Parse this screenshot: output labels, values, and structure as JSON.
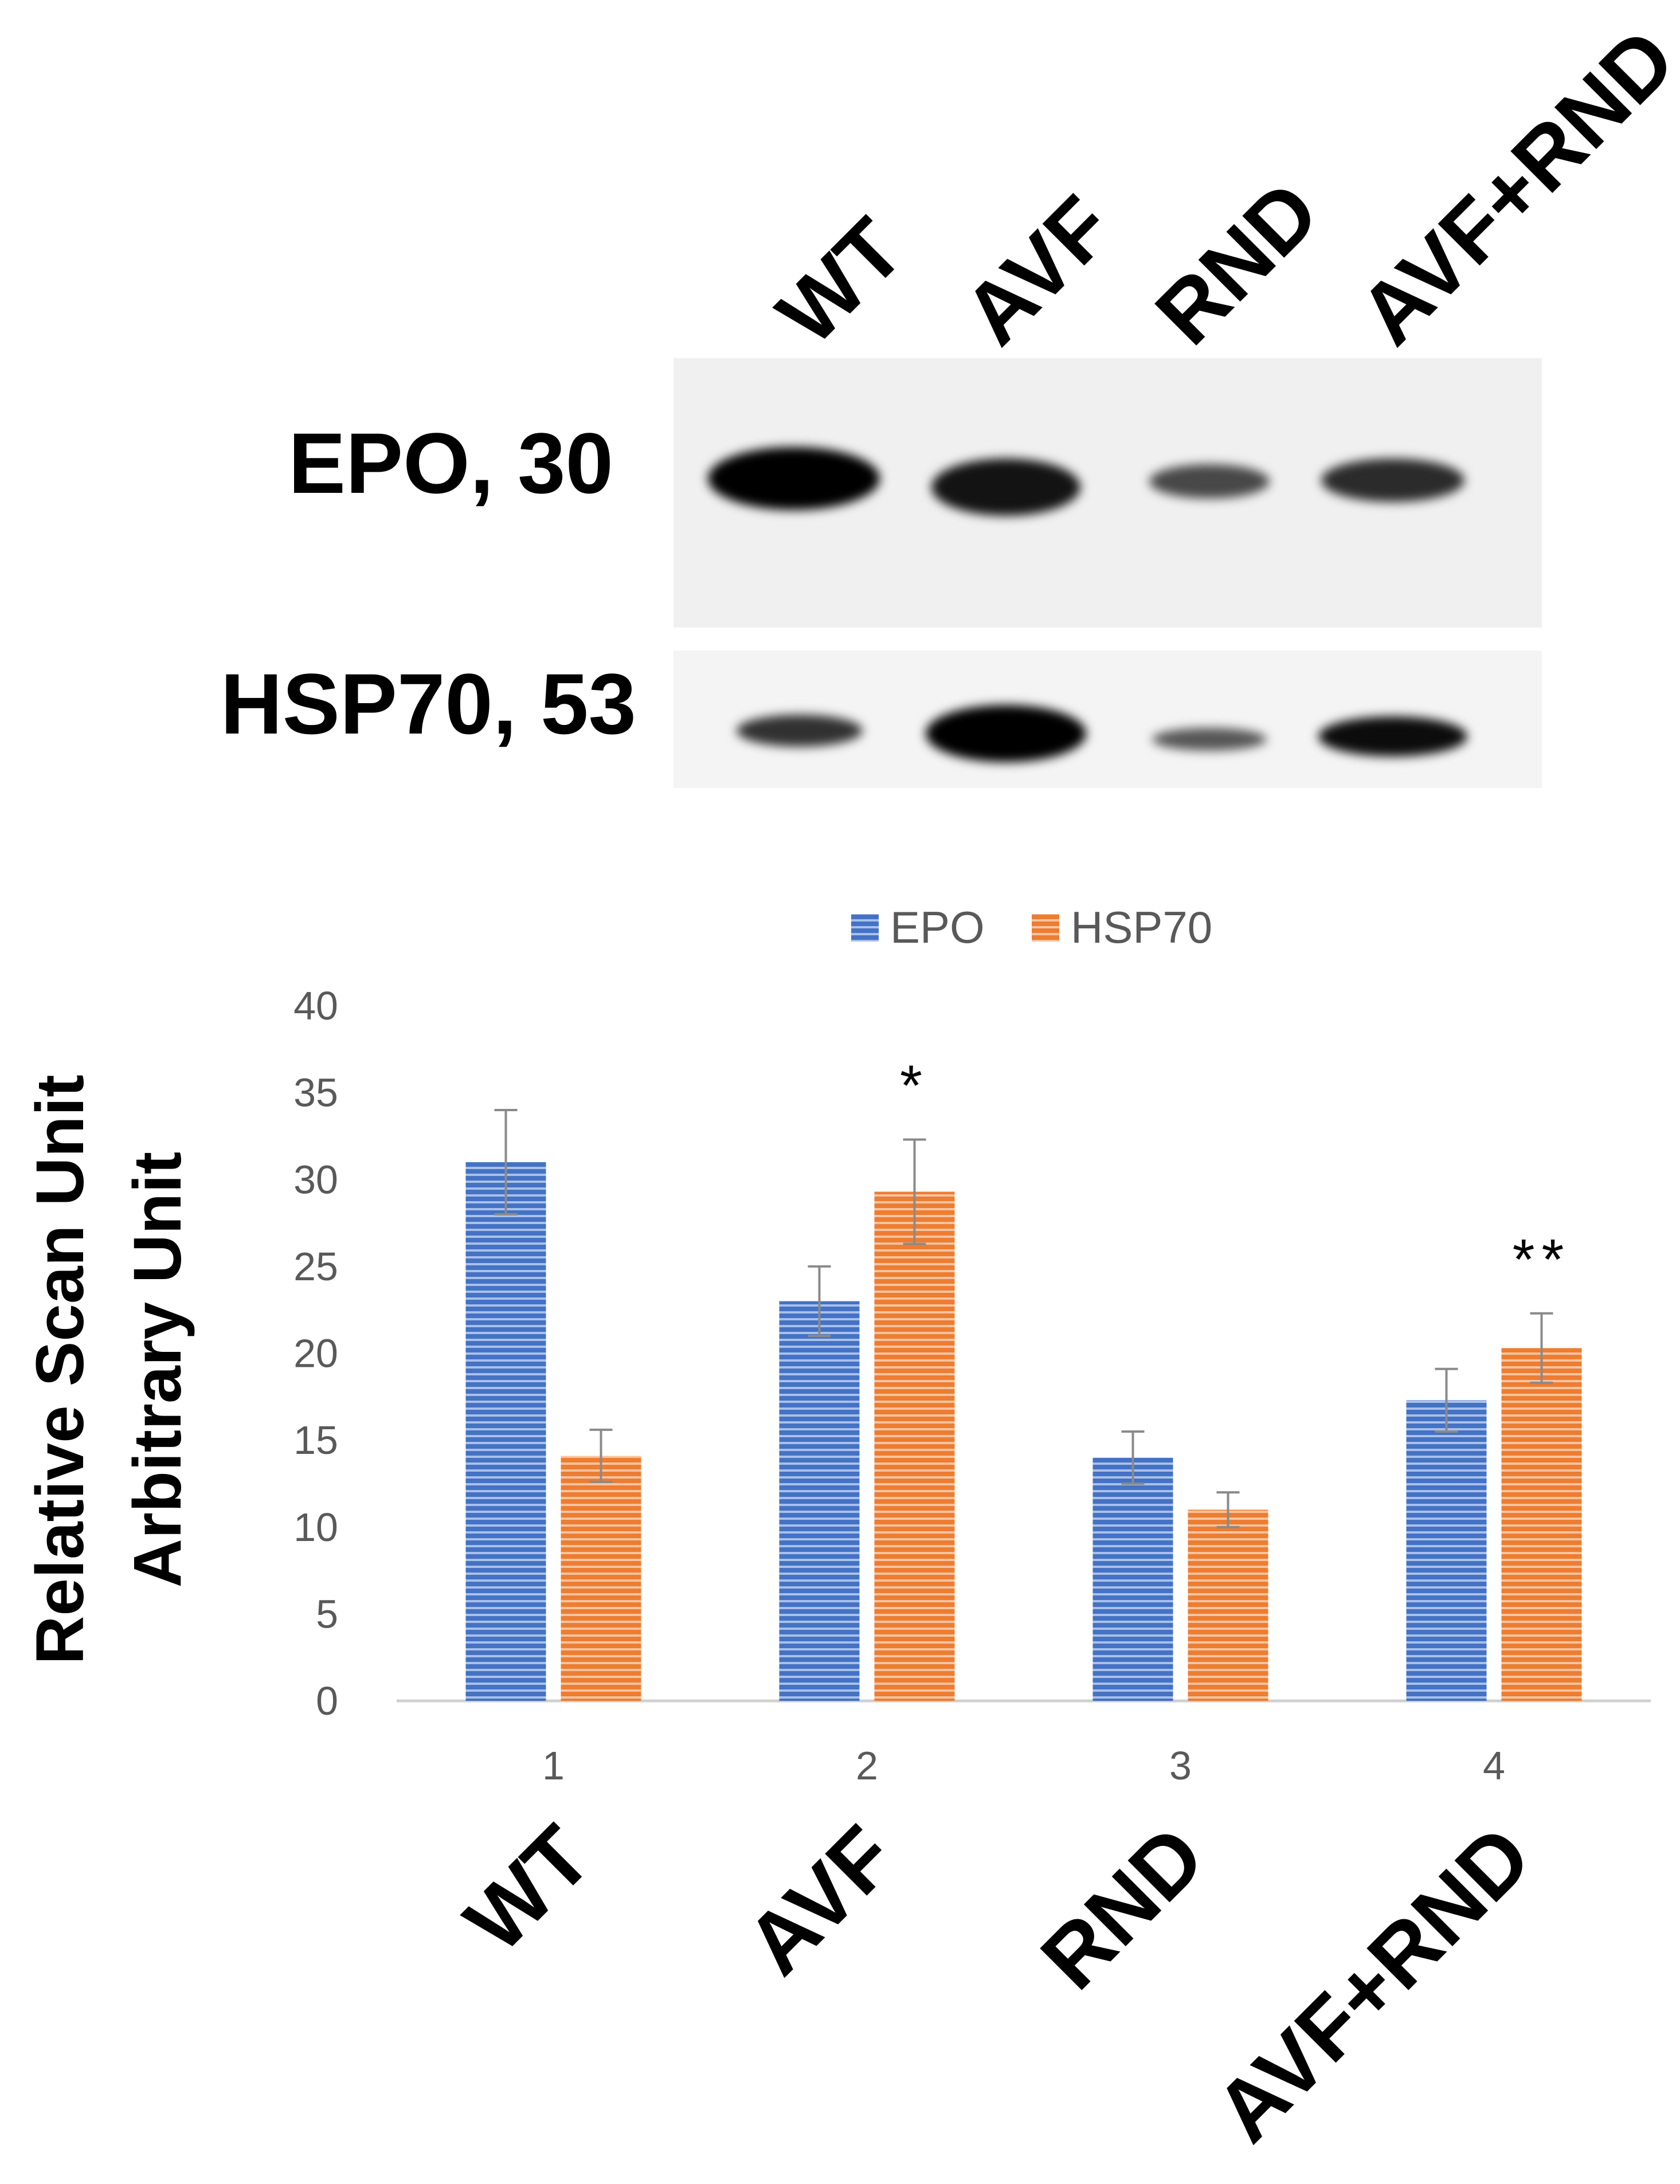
{
  "blot": {
    "lanes": [
      "WT",
      "AVF",
      "RND",
      "AVF+RND"
    ],
    "bands": [
      {
        "label": "EPO, 30",
        "intensities": [
          1.0,
          0.85,
          0.55,
          0.7
        ]
      },
      {
        "label": "HSP70, 53",
        "intensities": [
          0.6,
          1.0,
          0.45,
          0.85
        ]
      }
    ]
  },
  "chart_data": {
    "type": "bar",
    "categories": [
      "1",
      "2",
      "3",
      "4"
    ],
    "group_labels": [
      "WT",
      "AVF",
      "RND",
      "AVF+RND"
    ],
    "series": [
      {
        "name": "EPO",
        "values": [
          31,
          23,
          14,
          17.3
        ],
        "errors": [
          3,
          2,
          1.5,
          1.8
        ]
      },
      {
        "name": "HSP70",
        "values": [
          14.1,
          29.3,
          11,
          20.3
        ],
        "errors": [
          1.5,
          3,
          1,
          2
        ]
      }
    ],
    "colors": {
      "EPO": "#4472c4",
      "HSP70": "#ed7d31"
    },
    "annotations": [
      {
        "category": "2",
        "series": "HSP70",
        "text": "*"
      },
      {
        "category": "4",
        "series": "HSP70",
        "text": "**"
      }
    ],
    "ylabel_lines": [
      "Relative Scan Unit",
      "Arbitrary Unit"
    ],
    "ylim": [
      0,
      40
    ],
    "yticks": [
      0,
      5,
      10,
      15,
      20,
      25,
      30,
      35,
      40
    ],
    "legend_position": "top-center",
    "grid": false
  }
}
